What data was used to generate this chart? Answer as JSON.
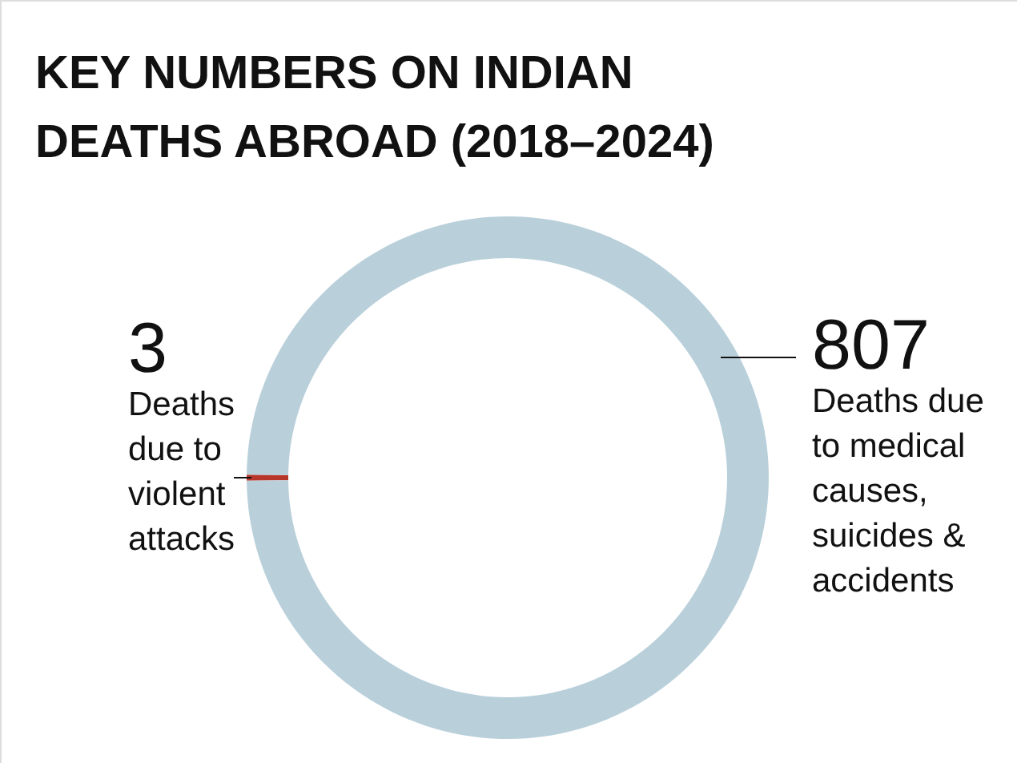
{
  "chart_data": {
    "type": "donut",
    "title": "KEY NUMBERS ON INDIAN DEATHS ABROAD (2018–2024)",
    "categories": [
      "Deaths due to violent attacks",
      "Deaths due to medical causes, suicides & accidents"
    ],
    "values": [
      3,
      807
    ],
    "colors": [
      "#b8352a",
      "#b9d0db"
    ],
    "data_labels": true
  }
}
